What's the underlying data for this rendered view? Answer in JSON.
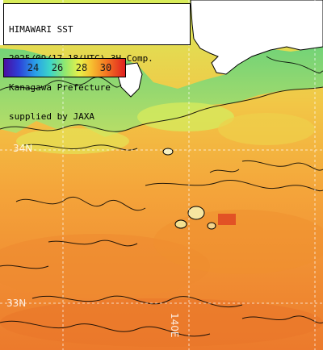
{
  "caption": {
    "line1": "HIMAWARI SST",
    "line2": "2025/09/17 18(UTC) 3H Comp.",
    "line3": "Kanagawa Prefecture",
    "line4": "supplied by JAXA"
  },
  "legend": {
    "tick_labels": [
      "24",
      "26",
      "28",
      "30"
    ],
    "colors": {
      "cool": "#2d3fd8",
      "mid": "#8fe870",
      "warm": "#f47a22",
      "hot": "#e02020"
    }
  },
  "grid_labels": {
    "lat_34n": "34N",
    "lat_33n": "33N",
    "lon_140e": "140E"
  },
  "colors": {
    "land": "#ffffff",
    "coastal_water": "#7fdc70",
    "open_ocean": "#f09a3c",
    "coastline": "#000000"
  }
}
